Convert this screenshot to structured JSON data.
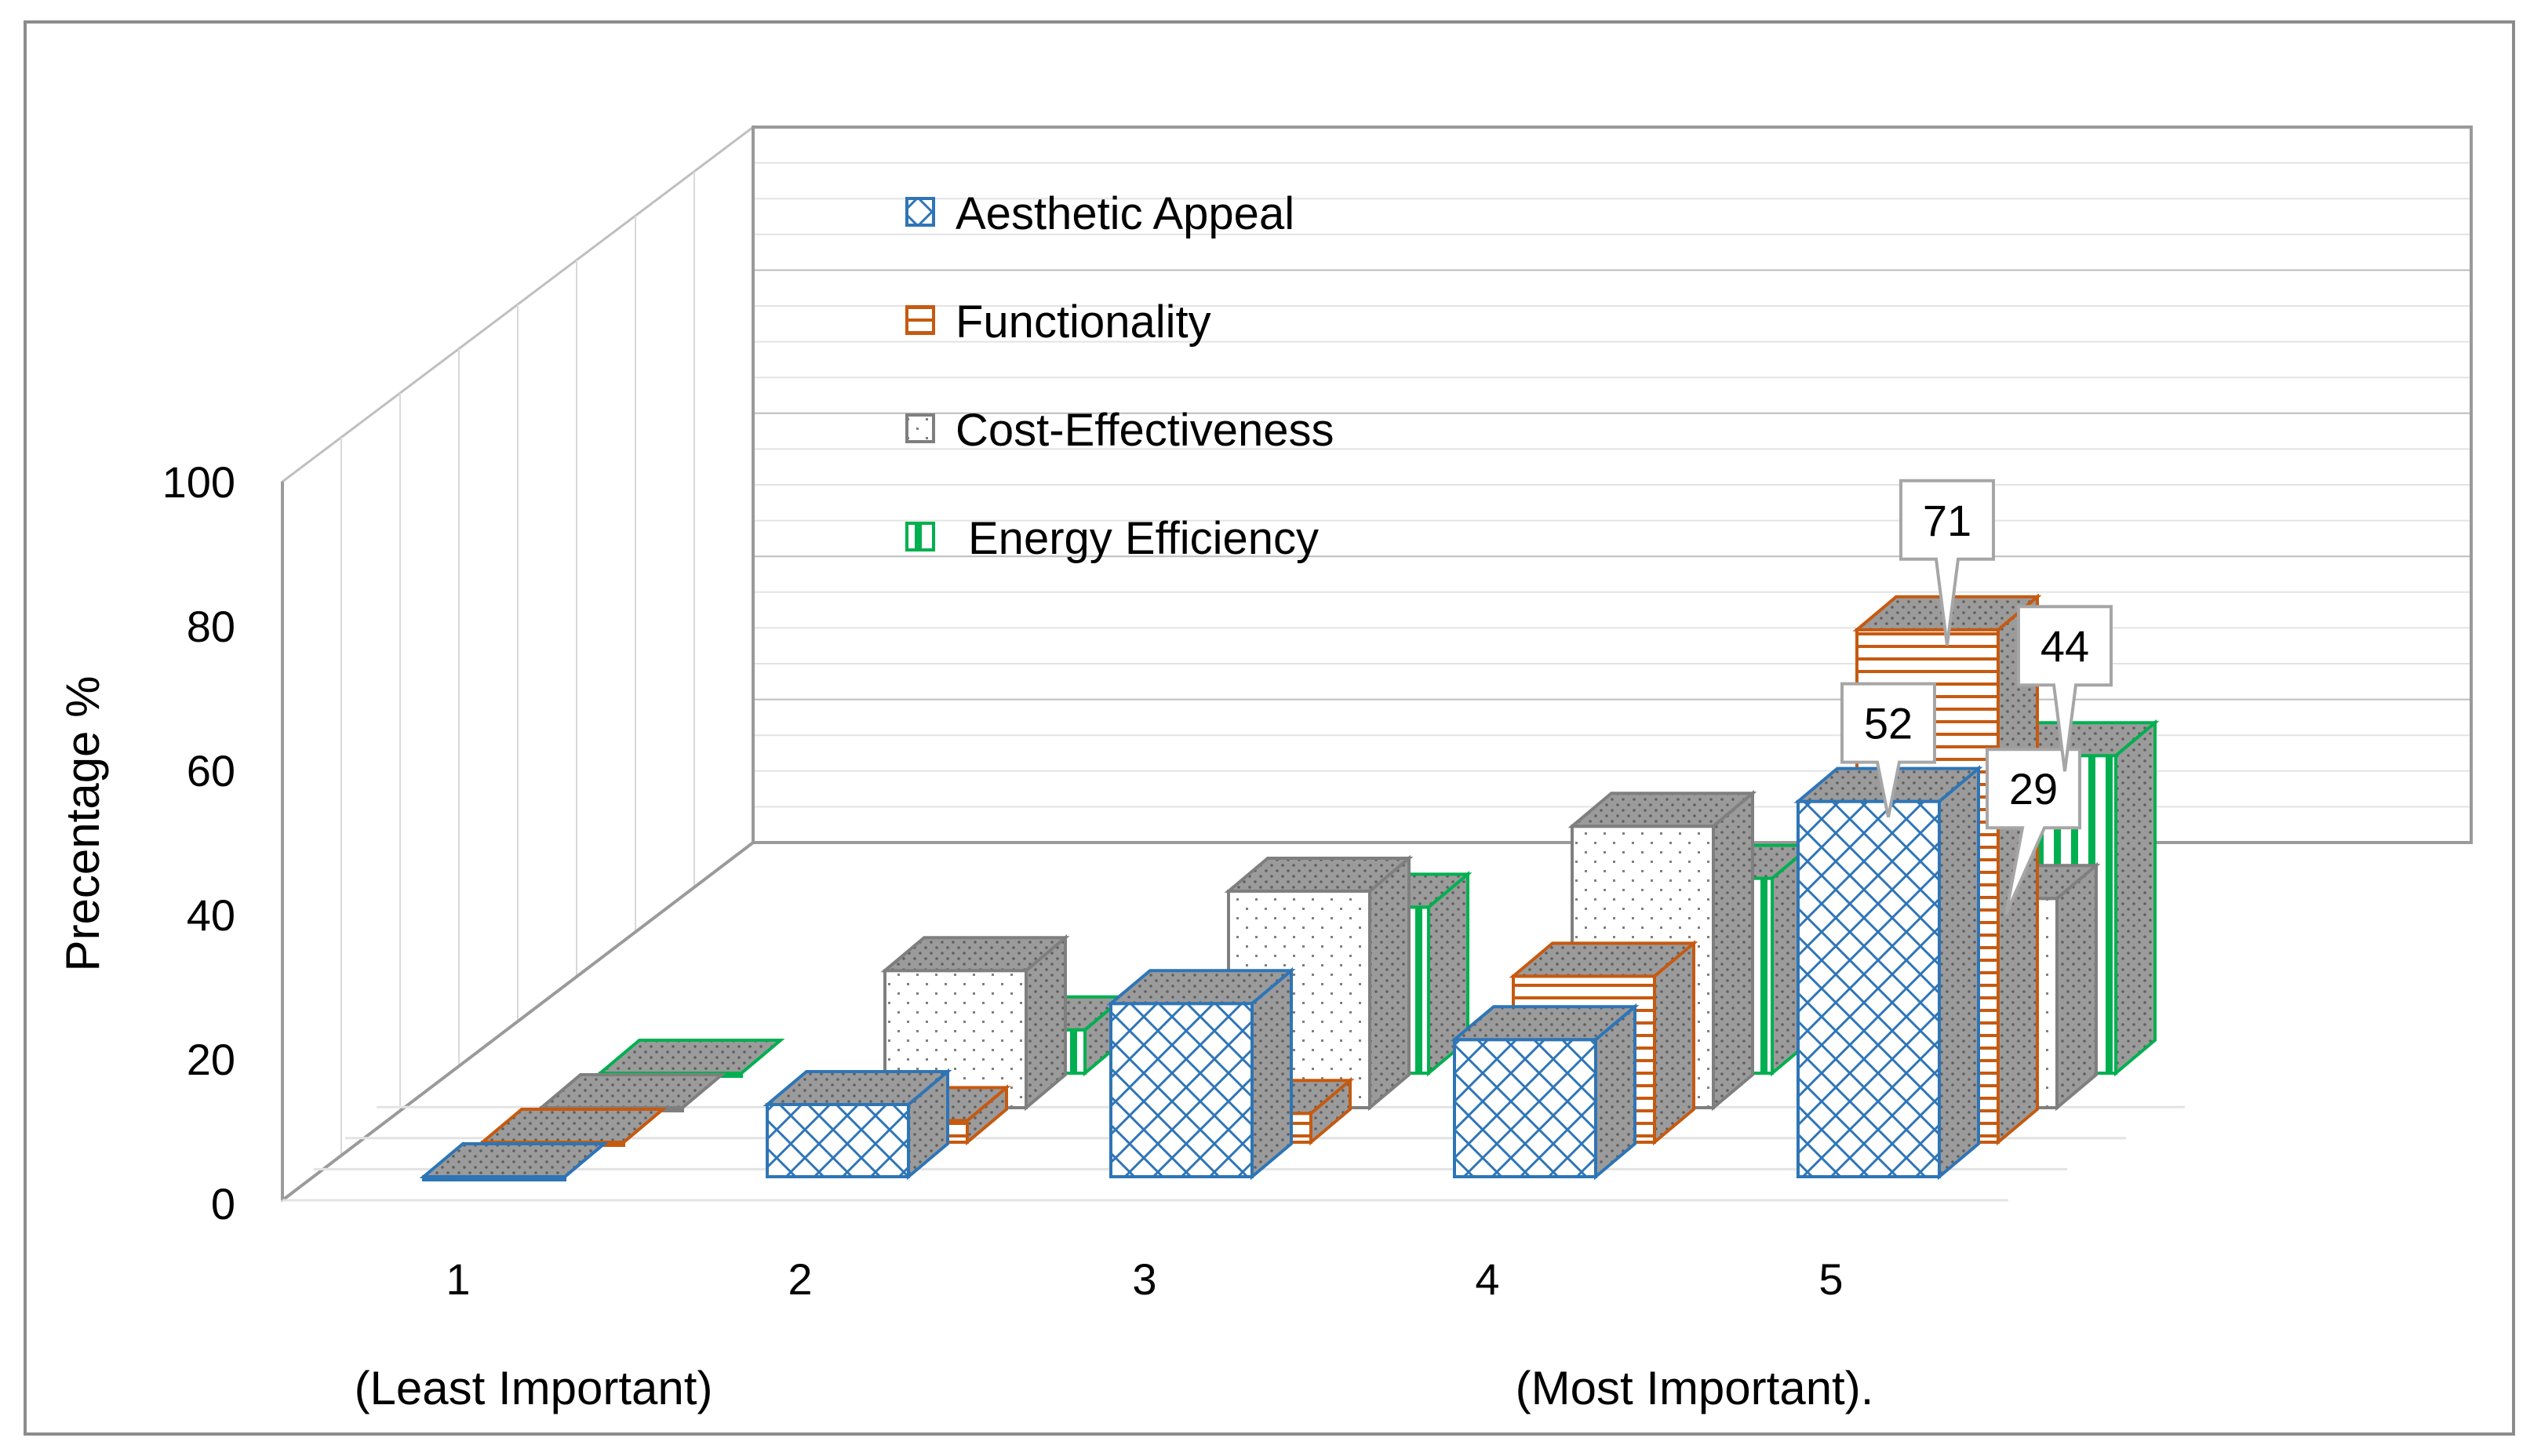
{
  "chart_data": {
    "type": "bar",
    "subtype": "3d-clustered-column",
    "title": "",
    "ylabel": "Precentage %",
    "xlabel": "",
    "ylim": [
      0,
      100
    ],
    "yticks": [
      "0",
      "20",
      "40",
      "60",
      "80",
      "100"
    ],
    "categories": [
      "1",
      "2",
      "3",
      "4",
      "5"
    ],
    "x_notes": {
      "left": "(Least Important)",
      "right": "(Most Important)."
    },
    "series": [
      {
        "name": "Aesthetic Appeal",
        "values": [
          0,
          10,
          24,
          19,
          52
        ],
        "color": "#2E75B6",
        "pattern": "diamond-lattice"
      },
      {
        "name": "Functionality",
        "values": [
          0,
          3,
          4,
          23,
          71
        ],
        "color": "#C55A11",
        "pattern": "horizontal-lines"
      },
      {
        "name": "Cost-Effectiveness",
        "values": [
          0,
          19,
          30,
          39,
          29
        ],
        "color": "#7F7F7F",
        "pattern": "dots"
      },
      {
        "name": "Energy Efficiency",
        "values": [
          0,
          6,
          23,
          27,
          44
        ],
        "color": "#00B050",
        "pattern": "vertical-lines"
      }
    ],
    "data_labels": [
      {
        "series": "Aesthetic Appeal",
        "category": "5",
        "text": "52"
      },
      {
        "series": "Functionality",
        "category": "5",
        "text": "71"
      },
      {
        "series": "Cost-Effectiveness",
        "category": "5",
        "text": "29"
      },
      {
        "series": "Energy Efficiency",
        "category": "5",
        "text": "44"
      }
    ],
    "legend_position": "top-center",
    "grid": true
  }
}
